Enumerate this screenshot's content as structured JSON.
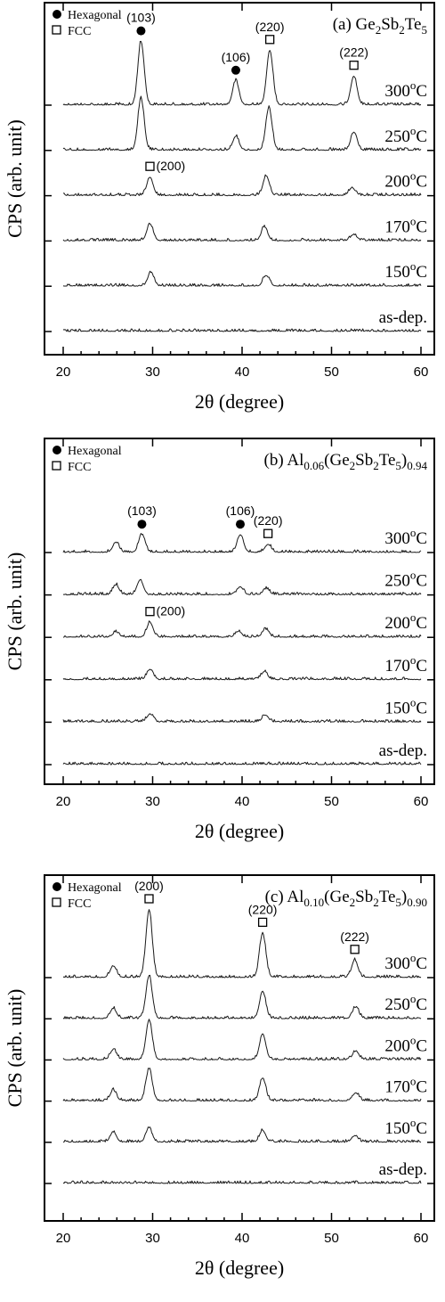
{
  "chart_data": [
    {
      "type": "line",
      "title_prefix": "(a) ",
      "title_parts": [
        [
          "Ge",
          ""
        ],
        [
          "2",
          "sub"
        ],
        [
          "Sb",
          ""
        ],
        [
          "2",
          "sub"
        ],
        [
          "Te",
          ""
        ],
        [
          "5",
          "sub"
        ]
      ],
      "xlabel": "2θ (degree)",
      "ylabel": "CPS (arb. unit)",
      "xlim": [
        18.5,
        60.5
      ],
      "xticks": [
        20,
        30,
        40,
        50,
        60
      ],
      "legend": [
        {
          "marker": "circle",
          "label": "Hexagonal"
        },
        {
          "marker": "square",
          "label": "FCC"
        }
      ],
      "series": [
        {
          "label": "300",
          "peaks": [
            [
              28.7,
              4.2
            ],
            [
              39.3,
              1.6
            ],
            [
              43.1,
              3.6
            ],
            [
              52.5,
              1.9
            ]
          ]
        },
        {
          "label": "250",
          "peaks": [
            [
              28.7,
              3.4
            ],
            [
              39.3,
              0.9
            ],
            [
              43.0,
              2.8
            ],
            [
              52.5,
              1.2
            ]
          ]
        },
        {
          "label": "200",
          "peaks": [
            [
              29.7,
              1.2
            ],
            [
              42.7,
              1.3
            ],
            [
              52.3,
              0.5
            ]
          ]
        },
        {
          "label": "170",
          "peaks": [
            [
              29.7,
              1.1
            ],
            [
              42.5,
              0.9
            ],
            [
              52.5,
              0.4
            ]
          ]
        },
        {
          "label": "150",
          "peaks": [
            [
              29.8,
              0.9
            ],
            [
              42.7,
              0.7
            ]
          ]
        },
        {
          "label": "as-dep.",
          "peaks": []
        }
      ],
      "annotations": [
        {
          "text": "(103)",
          "x": 28.7,
          "marker": "circle",
          "series": "300"
        },
        {
          "text": "(106)",
          "x": 39.3,
          "marker": "circle",
          "series": "300"
        },
        {
          "text": "(220)",
          "x": 43.1,
          "marker": "square",
          "series": "300"
        },
        {
          "text": "(222)",
          "x": 52.5,
          "marker": "square",
          "series": "300"
        },
        {
          "text": "(200)",
          "x": 29.7,
          "marker": "square",
          "series": "200"
        }
      ]
    },
    {
      "type": "line",
      "title_prefix": "(b) ",
      "title_parts": [
        [
          "Al",
          ""
        ],
        [
          "0.06",
          "sub"
        ],
        [
          "(Ge",
          ""
        ],
        [
          "2",
          "sub"
        ],
        [
          "Sb",
          ""
        ],
        [
          "2",
          "sub"
        ],
        [
          "Te",
          ""
        ],
        [
          "5",
          "sub"
        ],
        [
          ")",
          ""
        ],
        [
          "0.94",
          "sub"
        ]
      ],
      "xlabel": "2θ (degree)",
      "ylabel": "CPS (arb. unit)",
      "xlim": [
        18.5,
        60.5
      ],
      "xticks": [
        20,
        30,
        40,
        50,
        60
      ],
      "legend": [
        {
          "marker": "circle",
          "label": "Hexagonal"
        },
        {
          "marker": "square",
          "label": "FCC"
        }
      ],
      "series": [
        {
          "label": "300",
          "peaks": [
            [
              25.9,
              1.0
            ],
            [
              28.8,
              1.8
            ],
            [
              39.8,
              1.8
            ],
            [
              42.9,
              0.8
            ]
          ]
        },
        {
          "label": "250",
          "peaks": [
            [
              25.9,
              1.0
            ],
            [
              28.6,
              1.5
            ],
            [
              39.8,
              0.8
            ],
            [
              42.7,
              0.6
            ]
          ]
        },
        {
          "label": "200",
          "peaks": [
            [
              25.9,
              0.5
            ],
            [
              29.7,
              1.5
            ],
            [
              39.6,
              0.6
            ],
            [
              42.6,
              0.8
            ]
          ]
        },
        {
          "label": "170",
          "peaks": [
            [
              29.7,
              1.0
            ],
            [
              42.5,
              0.8
            ]
          ]
        },
        {
          "label": "150",
          "peaks": [
            [
              29.7,
              0.8
            ],
            [
              42.6,
              0.7
            ]
          ]
        },
        {
          "label": "as-dep.",
          "peaks": []
        }
      ],
      "annotations": [
        {
          "text": "(103)",
          "x": 28.8,
          "marker": "circle",
          "series": "300"
        },
        {
          "text": "(106)",
          "x": 39.8,
          "marker": "circle",
          "series": "300"
        },
        {
          "text": "(220)",
          "x": 42.9,
          "marker": "square",
          "series": "300"
        },
        {
          "text": "(200)",
          "x": 29.7,
          "marker": "square",
          "series": "200"
        }
      ]
    },
    {
      "type": "line",
      "title_prefix": "(c) ",
      "title_parts": [
        [
          "Al",
          ""
        ],
        [
          "0.10",
          "sub"
        ],
        [
          "(Ge",
          ""
        ],
        [
          "2",
          "sub"
        ],
        [
          "Sb",
          ""
        ],
        [
          "2",
          "sub"
        ],
        [
          "Te",
          ""
        ],
        [
          "5",
          "sub"
        ],
        [
          ")",
          ""
        ],
        [
          "0.90",
          "sub"
        ]
      ],
      "xlabel": "2θ (degree)",
      "ylabel": "CPS (arb. unit)",
      "xlim": [
        18.5,
        60.5
      ],
      "xticks": [
        20,
        30,
        40,
        50,
        60
      ],
      "legend": [
        {
          "marker": "circle",
          "label": "Hexagonal"
        },
        {
          "marker": "square",
          "label": "FCC"
        }
      ],
      "series": [
        {
          "label": "300",
          "peaks": [
            [
              25.6,
              1.6
            ],
            [
              29.6,
              9.5
            ],
            [
              42.3,
              6.2
            ],
            [
              52.6,
              2.4
            ]
          ]
        },
        {
          "label": "250",
          "peaks": [
            [
              25.6,
              1.4
            ],
            [
              29.6,
              6.0
            ],
            [
              42.3,
              3.8
            ],
            [
              52.7,
              1.6
            ]
          ]
        },
        {
          "label": "200",
          "peaks": [
            [
              25.6,
              1.4
            ],
            [
              29.6,
              5.6
            ],
            [
              42.3,
              3.6
            ],
            [
              52.7,
              1.2
            ]
          ]
        },
        {
          "label": "170",
          "peaks": [
            [
              25.6,
              1.5
            ],
            [
              29.6,
              4.5
            ],
            [
              42.3,
              3.2
            ],
            [
              52.7,
              1.1
            ]
          ]
        },
        {
          "label": "150",
          "peaks": [
            [
              25.6,
              1.4
            ],
            [
              29.6,
              1.9
            ],
            [
              42.3,
              1.6
            ],
            [
              52.6,
              0.9
            ]
          ]
        },
        {
          "label": "as-dep.",
          "peaks": []
        }
      ],
      "annotations": [
        {
          "text": "(200)",
          "x": 29.6,
          "marker": "square",
          "series": "300"
        },
        {
          "text": "(220)",
          "x": 42.3,
          "marker": "square",
          "series": "300"
        },
        {
          "text": "(222)",
          "x": 52.6,
          "marker": "square",
          "series": "300"
        }
      ]
    }
  ],
  "temp_unit": "oC"
}
